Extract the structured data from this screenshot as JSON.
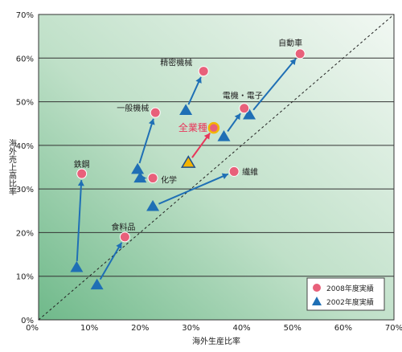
{
  "chart_data": {
    "type": "scatter",
    "title": "",
    "xlabel": "海外生産比率",
    "ylabel": "海外売上高比率",
    "xlim": [
      0,
      70
    ],
    "ylim": [
      0,
      70
    ],
    "x_ticks": [
      "0%",
      "10%",
      "20%",
      "30%",
      "40%",
      "50%",
      "60%",
      "70%"
    ],
    "y_ticks": [
      "0%",
      "10%",
      "20%",
      "30%",
      "40%",
      "50%",
      "60%",
      "70%"
    ],
    "grid": "horizontal",
    "diagonal_reference_line": true,
    "legend_position": "bottom-right",
    "series": [
      {
        "name": "2008年度実績",
        "marker": "circle",
        "color": "#e8607a",
        "points": [
          {
            "label": "自動車",
            "x": 51.5,
            "y": 61
          },
          {
            "label": "精密機械",
            "x": 32.5,
            "y": 57
          },
          {
            "label": "電機・電子",
            "x": 40.5,
            "y": 48.5
          },
          {
            "label": "一般機械",
            "x": 23,
            "y": 47.5
          },
          {
            "label": "全業種",
            "x": 34.5,
            "y": 44
          },
          {
            "label": "繊維",
            "x": 38.5,
            "y": 34
          },
          {
            "label": "鉄鋼",
            "x": 8.5,
            "y": 33.5
          },
          {
            "label": "化学",
            "x": 22.5,
            "y": 32.5
          },
          {
            "label": "食料品",
            "x": 17,
            "y": 19
          }
        ]
      },
      {
        "name": "2002年度実績",
        "marker": "triangle",
        "color": "#1f6fb5",
        "points": [
          {
            "label": "自動車",
            "x": 41.5,
            "y": 47
          },
          {
            "label": "精密機械",
            "x": 29,
            "y": 48
          },
          {
            "label": "電機・電子",
            "x": 36.5,
            "y": 42
          },
          {
            "label": "一般機械",
            "x": 19.5,
            "y": 34.5
          },
          {
            "label": "全業種",
            "x": 29.5,
            "y": 36
          },
          {
            "label": "繊維",
            "x": 22.5,
            "y": 26
          },
          {
            "label": "鉄鋼",
            "x": 7.5,
            "y": 12
          },
          {
            "label": "化学",
            "x": 20,
            "y": 32.5
          },
          {
            "label": "食料品",
            "x": 11.5,
            "y": 8
          }
        ]
      }
    ],
    "labels": [
      {
        "text": "自動車",
        "x": 51.5,
        "y": 61,
        "color": "#222222"
      },
      {
        "text": "精密機械",
        "x": 32.5,
        "y": 57,
        "color": "#222222"
      },
      {
        "text": "電機・電子",
        "x": 40.5,
        "y": 48.5,
        "color": "#222222"
      },
      {
        "text": "一般機械",
        "x": 23,
        "y": 47.5,
        "color": "#222222"
      },
      {
        "text": "全業種",
        "x": 34.5,
        "y": 44,
        "color": "#e8365a"
      },
      {
        "text": "繊維",
        "x": 38.5,
        "y": 34,
        "color": "#222222"
      },
      {
        "text": "鉄鋼",
        "x": 8.5,
        "y": 33.5,
        "color": "#222222"
      },
      {
        "text": "化学",
        "x": 22.5,
        "y": 32.5,
        "color": "#222222"
      },
      {
        "text": "食料品",
        "x": 17,
        "y": 19,
        "color": "#222222"
      }
    ],
    "legend": [
      {
        "label": "2008年度実績",
        "marker": "circle",
        "color": "#e8607a"
      },
      {
        "label": "2002年度実績",
        "marker": "triangle",
        "color": "#1f6fb5"
      }
    ],
    "colors": {
      "background_light": "#f0f7f1",
      "background_dark": "#7ec096",
      "grid": "#333333",
      "arrow": "#1f6fb5",
      "all_industries_arrow": "#e8365a",
      "all_industries_triangle": "#f4b400"
    }
  }
}
